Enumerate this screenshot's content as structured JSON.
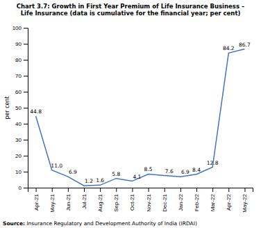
{
  "chart_data": {
    "type": "line",
    "title": "Chart 3.7: Growth in First Year Premium of Life Insurance Business –\nLife Insurance (data is cumulative for the financial year; per cent)",
    "source_label": "Source:",
    "source": "Insurance Regulatory and Development Authority of India (IRDAI)",
    "ylabel": "per cent",
    "categories": [
      "Apr-21",
      "May-21",
      "Jun-21",
      "Jul-21",
      "Aug-21",
      "Sep-21",
      "Oct-21",
      "Nov-21",
      "Dec-21",
      "Jan-22",
      "Feb-22",
      "Mar-22",
      "Apr-22",
      "May-22"
    ],
    "values": [
      44.8,
      11.0,
      6.9,
      1.2,
      1.6,
      5.8,
      4.1,
      8.5,
      7.6,
      6.9,
      8.4,
      12.8,
      84.2,
      86.7
    ],
    "value_labels": [
      "44.8",
      "11.0",
      "6.9",
      "1.2",
      "1.6",
      "5.8",
      "4.1",
      "8.5",
      "7.6",
      "6.9",
      "8.4",
      "12.8",
      "84.2",
      "86.7"
    ],
    "data_labels": true,
    "color": "#4472c4",
    "ylim": [
      0,
      100
    ],
    "yticks": [
      0,
      10,
      20,
      30,
      40,
      50,
      60,
      70,
      80,
      90,
      100
    ],
    "grid": false
  }
}
